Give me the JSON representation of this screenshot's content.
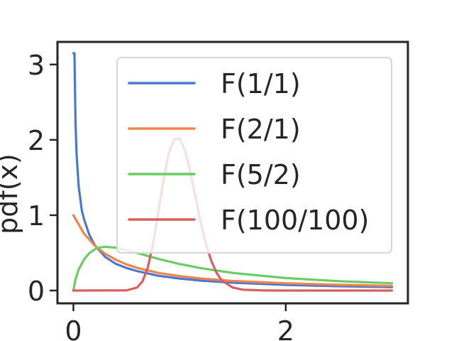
{
  "chart_data": {
    "type": "line",
    "title": "",
    "xlabel": "",
    "ylabel": "pdf(x)",
    "xlim": [
      -0.15,
      3.15
    ],
    "ylim": [
      -0.17,
      3.3
    ],
    "x_ticks": [
      0,
      2
    ],
    "x_tick_labels": [
      "0",
      "2"
    ],
    "y_ticks": [
      0,
      1,
      2,
      3
    ],
    "y_tick_labels": [
      "0",
      "1",
      "2",
      "3"
    ],
    "grid": false,
    "legend_position": "upper-right",
    "series": [
      {
        "name": "F(1/1)",
        "color": "#4878cf",
        "x": [
          0.001,
          0.01,
          0.02,
          0.03,
          0.05,
          0.08,
          0.1,
          0.15,
          0.2,
          0.3,
          0.4,
          0.5,
          0.6,
          0.8,
          1.0,
          1.2,
          1.5,
          2.0,
          2.5,
          3.0
        ],
        "y": [
          3.15,
          3.15,
          2.23,
          1.81,
          1.38,
          1.06,
          0.947,
          0.74,
          0.606,
          0.446,
          0.354,
          0.3,
          0.258,
          0.196,
          0.159,
          0.132,
          0.104,
          0.075,
          0.057,
          0.046
        ]
      },
      {
        "name": "F(2/1)",
        "color": "#ee854a",
        "x": [
          0,
          0.1,
          0.2,
          0.3,
          0.4,
          0.5,
          0.6,
          0.8,
          1.0,
          1.2,
          1.5,
          2.0,
          2.5,
          3.0
        ],
        "y": [
          1.0,
          0.756,
          0.598,
          0.488,
          0.408,
          0.348,
          0.301,
          0.234,
          0.192,
          0.16,
          0.127,
          0.096,
          0.076,
          0.062
        ]
      },
      {
        "name": "F(5/2)",
        "color": "#6acc64",
        "x": [
          0,
          0.02,
          0.05,
          0.1,
          0.15,
          0.2,
          0.25,
          0.3,
          0.4,
          0.5,
          0.6,
          0.8,
          1.0,
          1.2,
          1.5,
          2.0,
          2.5,
          3.0
        ],
        "y": [
          0,
          0.151,
          0.28,
          0.414,
          0.496,
          0.545,
          0.572,
          0.58,
          0.569,
          0.538,
          0.499,
          0.42,
          0.352,
          0.297,
          0.234,
          0.166,
          0.124,
          0.097
        ]
      },
      {
        "name": "F(100/100)",
        "color": "#d65f5f",
        "x": [
          0,
          0.5,
          0.6,
          0.65,
          0.7,
          0.75,
          0.8,
          0.85,
          0.9,
          0.95,
          1.0,
          1.05,
          1.1,
          1.15,
          1.2,
          1.25,
          1.3,
          1.35,
          1.4,
          1.5,
          1.6,
          1.8,
          2.0,
          3.0
        ],
        "y": [
          0,
          0.002,
          0.04,
          0.12,
          0.3,
          0.62,
          1.04,
          1.48,
          1.83,
          2.01,
          2.02,
          1.86,
          1.58,
          1.24,
          0.9,
          0.61,
          0.39,
          0.23,
          0.13,
          0.04,
          0.01,
          0.001,
          0,
          0
        ]
      }
    ]
  }
}
